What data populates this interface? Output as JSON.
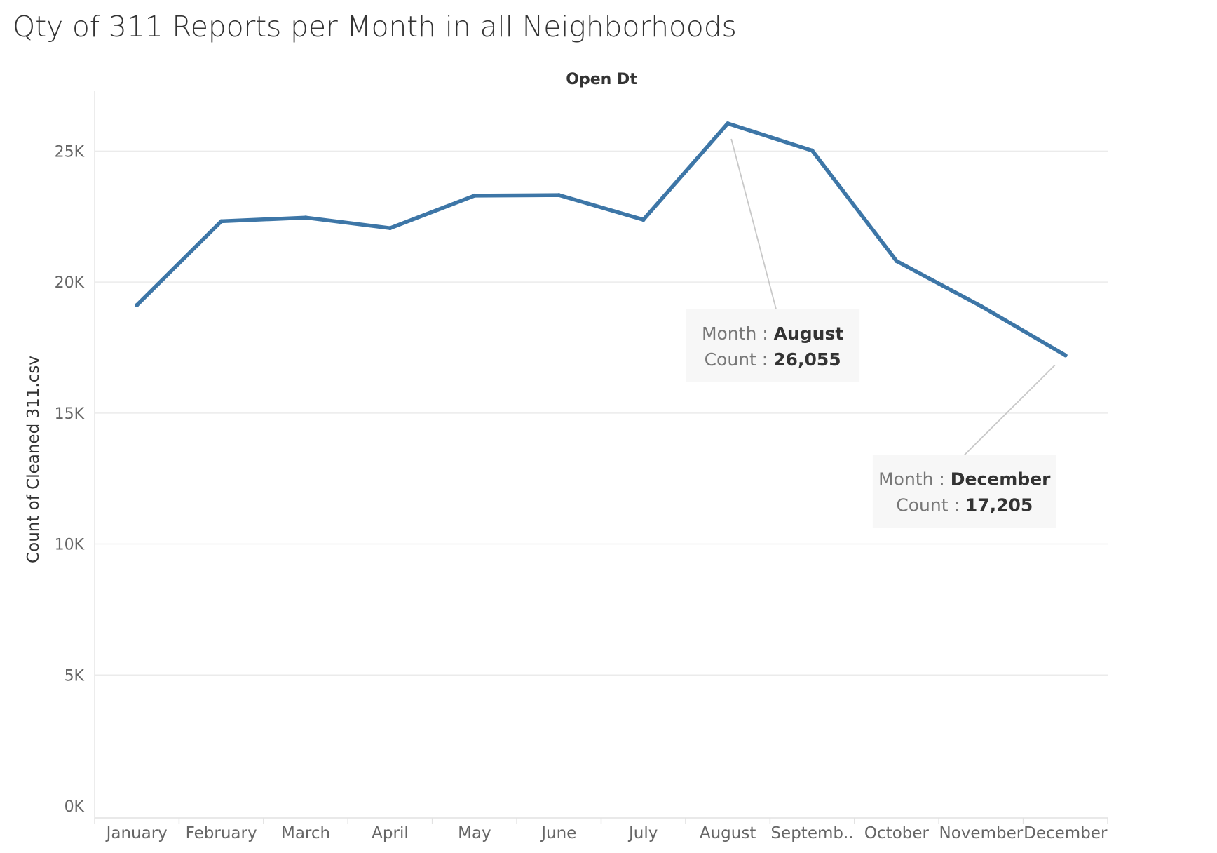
{
  "title": "Qty of 311 Reports per Month in all Neighborhoods",
  "colors": {
    "line": "#3d76a7",
    "grid": "#ebebeb",
    "axis_text": "#666666",
    "tooltip_bg": "#f7f7f7",
    "tooltip_label": "#777777",
    "tooltip_value": "#333333",
    "leader": "#c8c8c8"
  },
  "chart_data": {
    "type": "line",
    "title": "Qty of 311 Reports per Month in all Neighborhoods",
    "column_header": "Open Dt",
    "xlabel": "",
    "ylabel": "Count of Cleaned 311.csv",
    "categories": [
      "January",
      "February",
      "March",
      "April",
      "May",
      "June",
      "July",
      "August",
      "Septemb..",
      "October",
      "November",
      "December"
    ],
    "series": [
      {
        "values": [
          19120,
          22320,
          22460,
          22060,
          23300,
          23320,
          22380,
          26055,
          25020,
          20800,
          19080,
          17205
        ]
      }
    ],
    "ylim": [
      0,
      27500
    ],
    "yticks": [
      0,
      5000,
      10000,
      15000,
      20000,
      25000
    ],
    "ytick_labels": [
      "0K",
      "5K",
      "10K",
      "15K",
      "20K",
      "25K"
    ],
    "grid": true,
    "legend": "none",
    "annotations": [
      {
        "point_index": 7,
        "month_label": "Month :",
        "month_value": "August",
        "count_label": "Count :",
        "count_value": "26,055"
      },
      {
        "point_index": 11,
        "month_label": "Month :",
        "month_value": "December",
        "count_label": "Count :",
        "count_value": "17,205"
      }
    ]
  }
}
